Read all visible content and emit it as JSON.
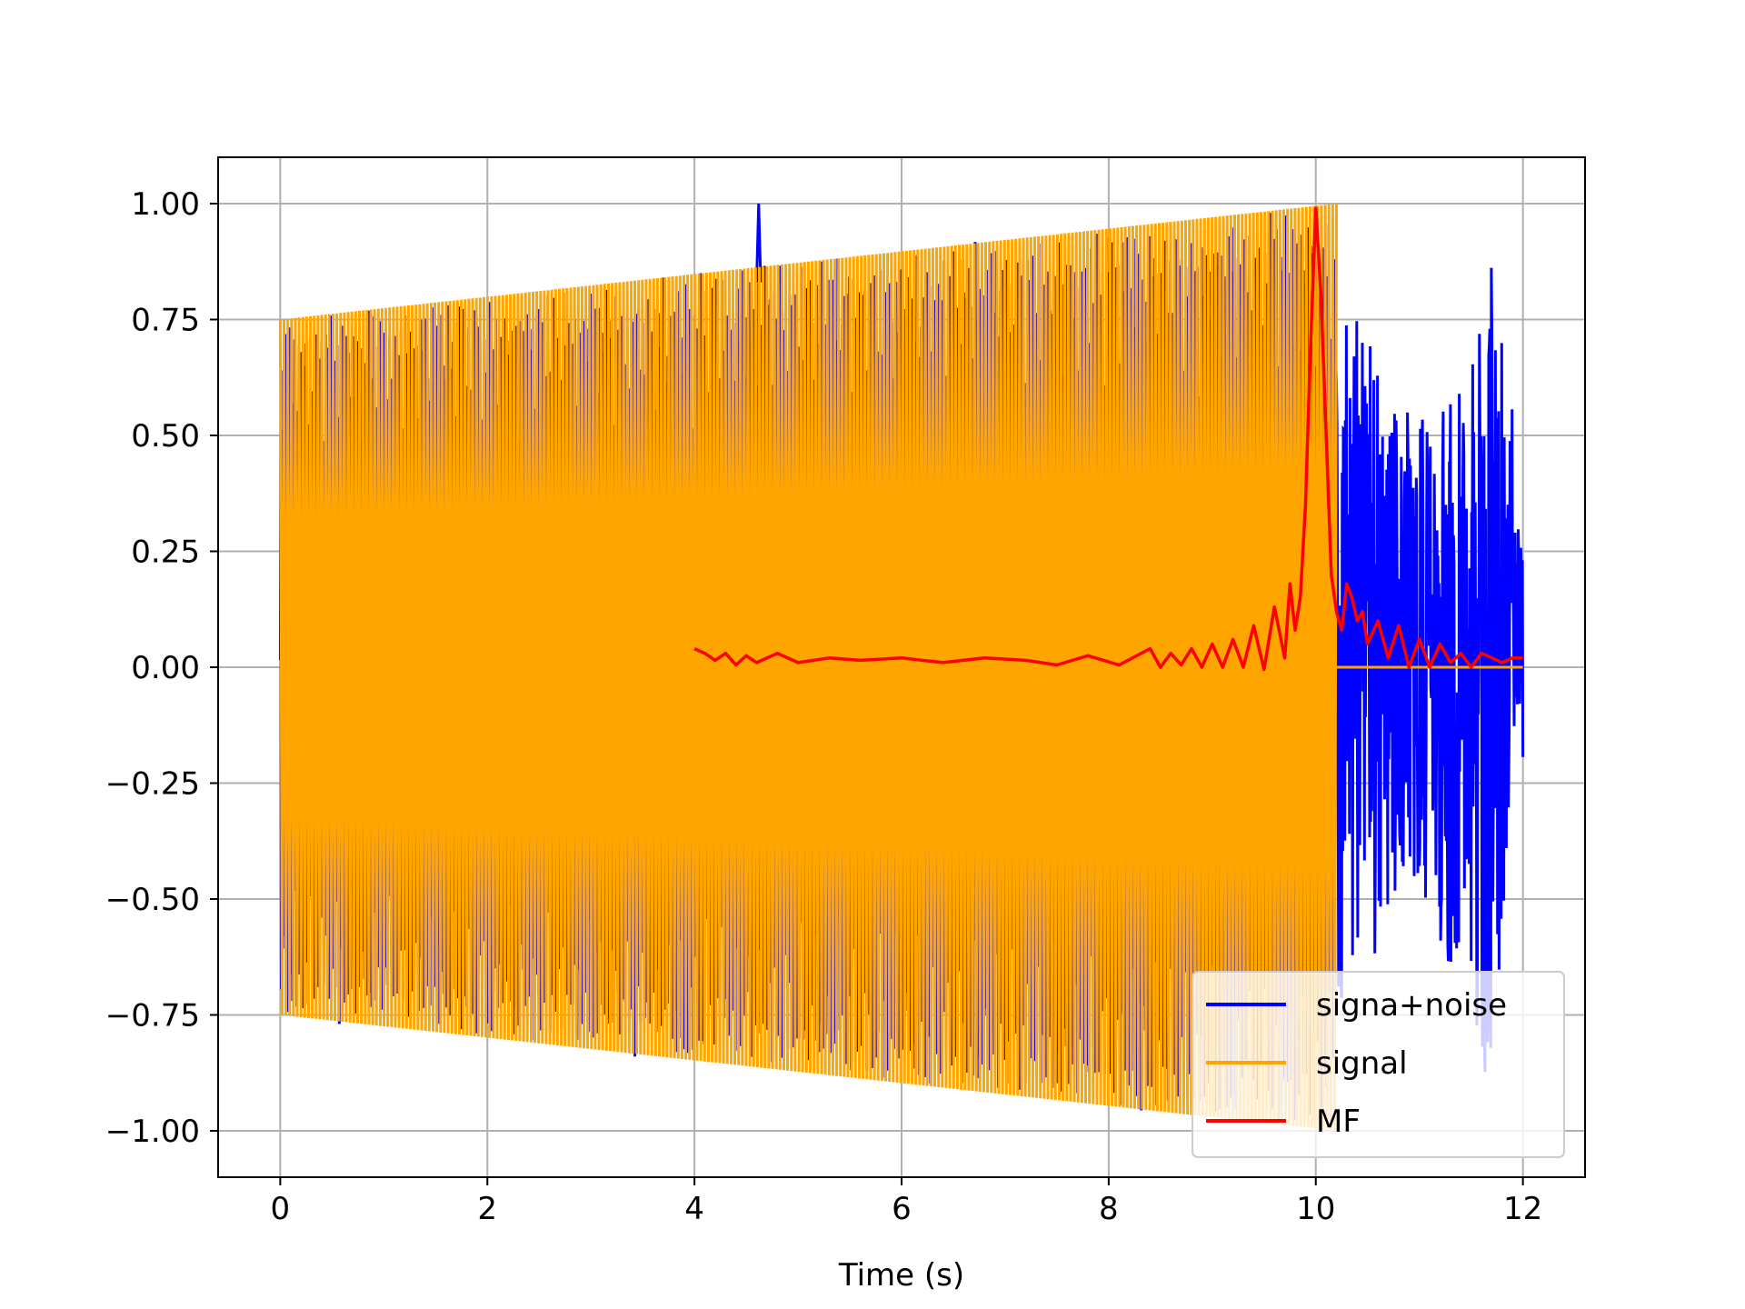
{
  "chart_data": {
    "type": "line",
    "title": "",
    "xlabel": "Time (s)",
    "ylabel": "",
    "xlim": [
      -0.6,
      12.6
    ],
    "ylim": [
      -1.1,
      1.1
    ],
    "xticks": [
      0,
      2,
      4,
      6,
      8,
      10,
      12
    ],
    "yticks": [
      1.0,
      0.75,
      0.5,
      0.25,
      0.0,
      -0.25,
      -0.5,
      -0.75,
      -1.0
    ],
    "xtick_labels": [
      "0",
      "2",
      "4",
      "6",
      "8",
      "10",
      "12"
    ],
    "ytick_labels": [
      "1.00",
      "0.75",
      "0.50",
      "0.25",
      "0.00",
      "−0.25",
      "−0.50",
      "−0.75",
      "−1.00"
    ],
    "grid": true,
    "legend_position": "lower-right",
    "series": [
      {
        "name": "signa+noise",
        "color": "#0000ff",
        "description_points": {
          "x": [
            0.0,
            4.6,
            4.62,
            4.64,
            10.2,
            10.3,
            10.4,
            10.45,
            10.55,
            10.6,
            10.7,
            10.8,
            10.9,
            11.0,
            11.1,
            11.2,
            11.3,
            11.4,
            11.5,
            11.55,
            11.6,
            11.65,
            11.7,
            11.8,
            11.9,
            12.0
          ],
          "y": [
            0.25,
            0.83,
            1.0,
            0.83,
            -0.35,
            0.75,
            -0.55,
            0.6,
            -0.7,
            0.52,
            -0.5,
            0.55,
            -0.5,
            0.45,
            -0.55,
            0.55,
            -0.65,
            0.45,
            -0.55,
            0.7,
            0.85,
            -0.88,
            0.74,
            -0.6,
            0.3,
            -0.3
          ]
        }
      },
      {
        "name": "signal",
        "color": "#ffa500",
        "envelope": {
          "x": [
            0.0,
            10.2
          ],
          "amplitude": [
            0.75,
            1.0
          ]
        },
        "after": {
          "x": [
            10.2,
            12.0
          ],
          "y": 0.0
        }
      },
      {
        "name": "MF",
        "color": "#ff0000",
        "x": [
          4.0,
          4.1,
          4.2,
          4.3,
          4.4,
          4.5,
          4.6,
          4.8,
          5.0,
          5.3,
          5.6,
          6.0,
          6.4,
          6.8,
          7.2,
          7.5,
          7.8,
          8.1,
          8.4,
          8.5,
          8.6,
          8.7,
          8.8,
          8.9,
          9.0,
          9.1,
          9.2,
          9.3,
          9.4,
          9.5,
          9.6,
          9.7,
          9.75,
          9.8,
          9.85,
          9.9,
          9.95,
          10.0,
          10.05,
          10.1,
          10.15,
          10.2,
          10.25,
          10.3,
          10.35,
          10.4,
          10.45,
          10.5,
          10.6,
          10.7,
          10.8,
          10.9,
          11.0,
          11.1,
          11.2,
          11.3,
          11.4,
          11.5,
          11.6,
          11.7,
          11.8,
          11.9,
          12.0
        ],
        "y": [
          0.04,
          0.03,
          0.015,
          0.03,
          0.005,
          0.025,
          0.01,
          0.03,
          0.01,
          0.02,
          0.015,
          0.02,
          0.01,
          0.02,
          0.015,
          0.005,
          0.025,
          0.005,
          0.04,
          0.0,
          0.03,
          0.005,
          0.04,
          0.0,
          0.05,
          0.0,
          0.06,
          0.0,
          0.09,
          -0.005,
          0.13,
          0.02,
          0.18,
          0.08,
          0.15,
          0.35,
          0.7,
          0.99,
          0.8,
          0.5,
          0.2,
          0.12,
          0.08,
          0.18,
          0.15,
          0.1,
          0.12,
          0.05,
          0.1,
          0.02,
          0.09,
          0.0,
          0.06,
          0.0,
          0.05,
          0.01,
          0.03,
          0.0,
          0.03,
          0.02,
          0.01,
          0.02,
          0.02
        ]
      }
    ]
  }
}
